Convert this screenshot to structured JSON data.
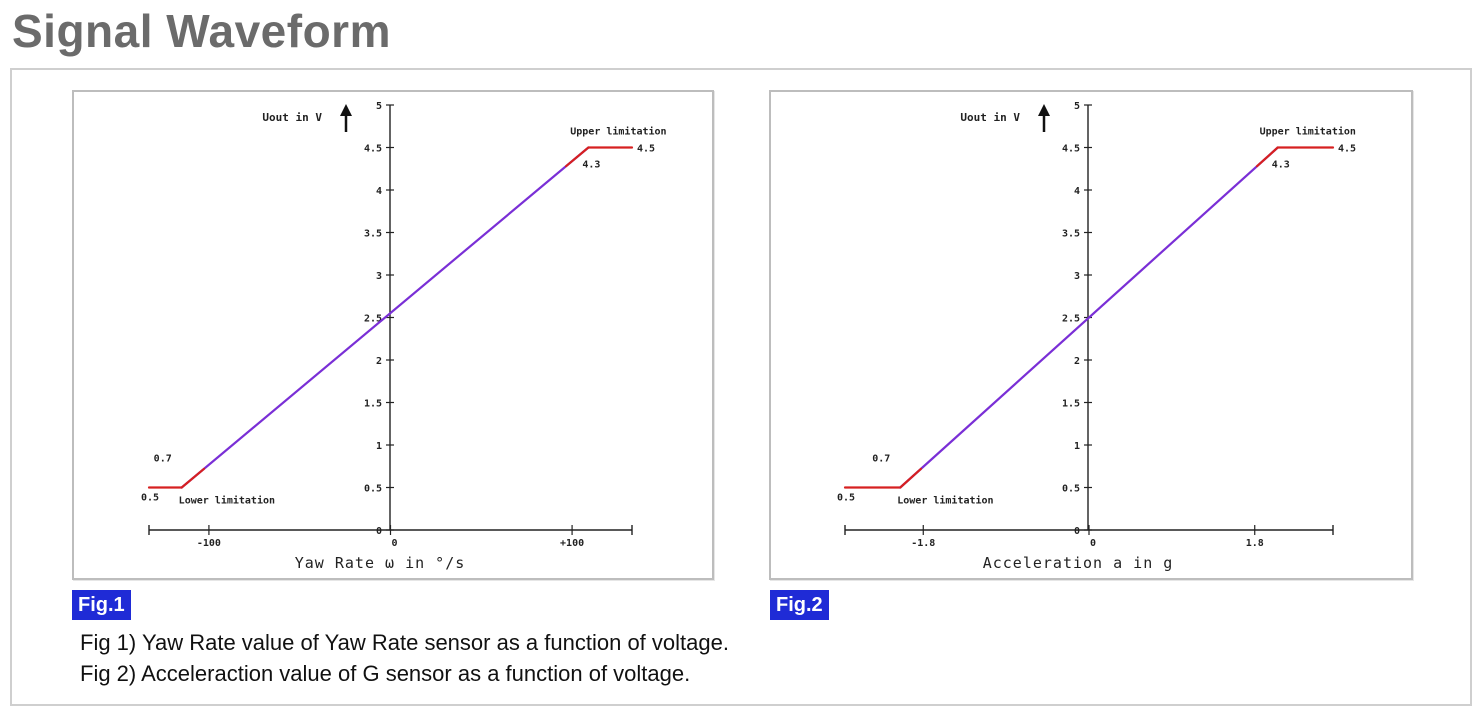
{
  "page": {
    "title": "Signal Waveform",
    "captions": [
      "Fig 1) Yaw Rate value of Yaw Rate sensor as a function of voltage.",
      "Fig 2) Acceleraction value of G sensor as a function of voltage."
    ]
  },
  "colors": {
    "limit_line": "#d62020",
    "linear_line": "#7a2fd6",
    "badge": "#1f2bd6",
    "axis": "#222222"
  },
  "chart_data": [
    {
      "type": "line",
      "badge": "Fig.1",
      "xlabel": "Yaw Rate ω in °/s",
      "ylabel": "Uout in V",
      "ylim": [
        0,
        5
      ],
      "xlim": [
        -133,
        133
      ],
      "y_ticks": [
        "0",
        "0.5",
        "1",
        "1.5",
        "2",
        "2.5",
        "3",
        "3.5",
        "4",
        "4.5",
        "5"
      ],
      "y_tick_values": [
        0,
        0.5,
        1,
        1.5,
        2,
        2.5,
        3,
        3.5,
        4,
        4.5,
        5
      ],
      "x_ticks": [
        {
          "value": -100,
          "label": "-100"
        },
        {
          "value": 0,
          "label": "0"
        },
        {
          "value": 100,
          "label": "+100"
        }
      ],
      "x_range_endpoints": [
        -133,
        133
      ],
      "series": [
        {
          "segment": "lower-limit",
          "x": [
            -133,
            -115
          ],
          "y": [
            0.5,
            0.5
          ]
        },
        {
          "segment": "linear",
          "x": [
            -115,
            109
          ],
          "y": [
            0.5,
            4.5
          ]
        },
        {
          "segment": "upper-limit",
          "x": [
            109,
            133
          ],
          "y": [
            4.5,
            4.5
          ]
        }
      ],
      "annotations": {
        "upper_label": "Upper limitation",
        "lower_label": "Lower limitation",
        "upper_value": "4.5",
        "upper_knee": "4.3",
        "lower_value": "0.5",
        "lower_knee": "0.7"
      },
      "grid": false
    },
    {
      "type": "line",
      "badge": "Fig.2",
      "xlabel": "Acceleration a in g",
      "ylabel": "Uout in V",
      "ylim": [
        0,
        5
      ],
      "xlim": [
        -2.65,
        2.65
      ],
      "y_ticks": [
        "0",
        "0.5",
        "1",
        "1.5",
        "2",
        "2.5",
        "3",
        "3.5",
        "4",
        "4.5",
        "5"
      ],
      "y_tick_values": [
        0,
        0.5,
        1,
        1.5,
        2,
        2.5,
        3,
        3.5,
        4,
        4.5,
        5
      ],
      "x_ticks": [
        {
          "value": -1.8,
          "label": "-1.8"
        },
        {
          "value": 0,
          "label": "0"
        },
        {
          "value": 1.8,
          "label": "1.8"
        }
      ],
      "x_range_endpoints": [
        -2.65,
        2.65
      ],
      "series": [
        {
          "segment": "lower-limit",
          "x": [
            -2.65,
            -2.05
          ],
          "y": [
            0.5,
            0.5
          ]
        },
        {
          "segment": "linear",
          "x": [
            -2.05,
            2.05
          ],
          "y": [
            0.5,
            4.5
          ]
        },
        {
          "segment": "upper-limit",
          "x": [
            2.05,
            2.65
          ],
          "y": [
            4.5,
            4.5
          ]
        }
      ],
      "annotations": {
        "upper_label": "Upper limitation",
        "lower_label": "Lower limitation",
        "upper_value": "4.5",
        "upper_knee": "4.3",
        "lower_value": "0.5",
        "lower_knee": "0.7"
      },
      "grid": false
    }
  ]
}
